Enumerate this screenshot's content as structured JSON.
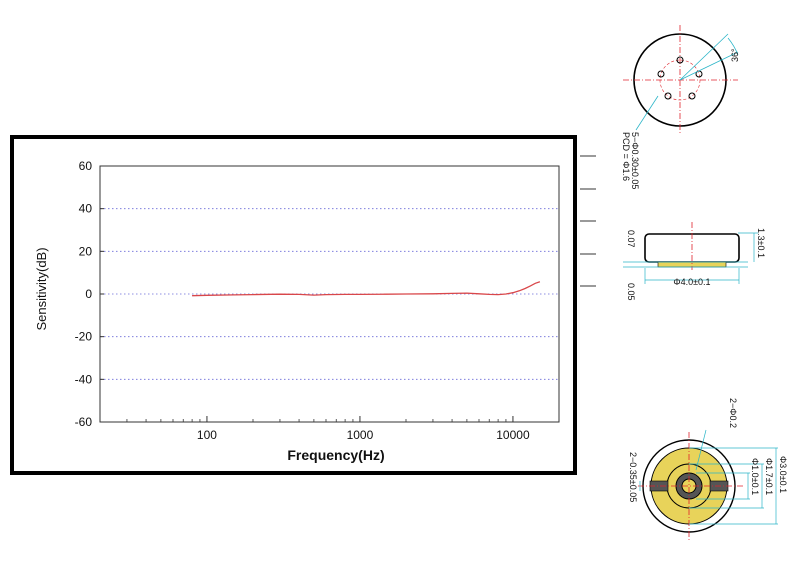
{
  "chart_data": {
    "type": "line",
    "title": "",
    "xlabel": "Frequency(Hz)",
    "ylabel": "Sensitivity(dB)",
    "xscale": "log",
    "xlim": [
      20,
      20000
    ],
    "ylim": [
      -60,
      60
    ],
    "x_ticks": [
      100,
      1000,
      10000
    ],
    "x_tick_labels": [
      "100",
      "1000",
      "10000"
    ],
    "y_ticks": [
      60,
      40,
      20,
      0,
      -20,
      -40,
      -60
    ],
    "y_tick_labels": [
      "60",
      "40",
      "20",
      "0",
      "-20",
      "-40",
      "-60"
    ],
    "grid": "horizontal dotted",
    "legend": "none",
    "series": [
      {
        "color": "#d9474a",
        "x": [
          80,
          100,
          150,
          200,
          300,
          400,
          500,
          600,
          800,
          1000,
          1500,
          2000,
          3000,
          4000,
          5000,
          6000,
          7000,
          8000,
          9000,
          10000,
          11000,
          12000,
          13000,
          14000,
          15000
        ],
        "y": [
          -0.8,
          -0.6,
          -0.4,
          -0.3,
          -0.1,
          -0.2,
          -0.5,
          -0.3,
          -0.2,
          -0.2,
          -0.1,
          0,
          0.1,
          0.3,
          0.4,
          0.1,
          -0.2,
          -0.3,
          0,
          0.6,
          1.5,
          2.6,
          3.8,
          5,
          5.7
        ]
      }
    ]
  },
  "drawings": {
    "top_view": {
      "angle_label": "36°",
      "hole_spec": "5−Φ0.30±0.05",
      "pcd_label": "PCD = Φ1.6"
    },
    "side_view": {
      "height_label": "1.3±0.1",
      "top_offset_label": "0.07",
      "bottom_offset_label": "0.05",
      "diameter_label": "Φ4.0±0.1"
    },
    "bottom_view": {
      "hole_label": "2−Φ0.2",
      "pad_label": "2−0.35±0.05",
      "outer_label": "Φ3.0±0.1",
      "mid_label": "Φ1.7±0.1",
      "inner_label": "Φ1.0±0.1"
    },
    "colors": {
      "outline": "#000000",
      "center_line": "#e0242c",
      "dimension": "#2bb5c8",
      "pad": "#e8d35a"
    }
  }
}
